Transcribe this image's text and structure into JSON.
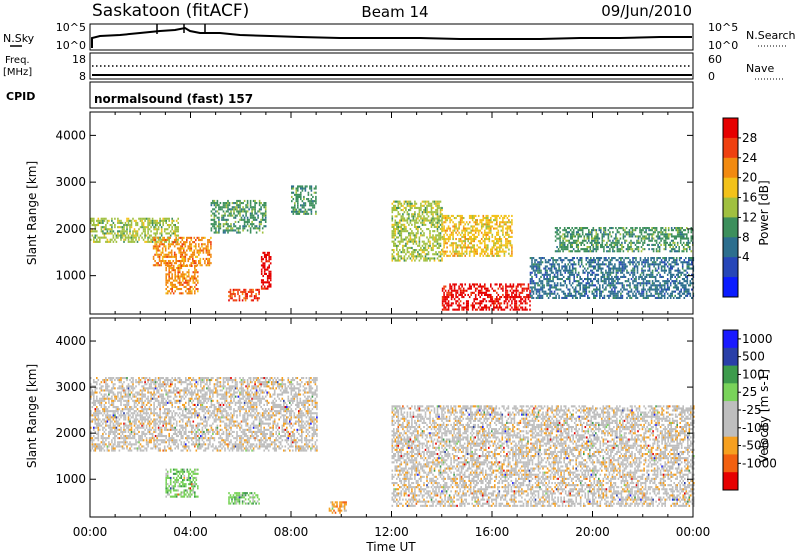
{
  "header": {
    "station": "Saskatoon (fitACF)",
    "beam": "Beam 14",
    "date": "09/Jun/2010"
  },
  "strip_sky": {
    "left_label": "N.Sky",
    "right_label": "N.Search",
    "left_ticks": [
      "10^5",
      "10^0"
    ],
    "right_ticks": [
      "10^5",
      "10^0"
    ]
  },
  "strip_freq": {
    "left_label_1": "Freq.",
    "left_label_2": "[MHz]",
    "right_label": "Nave",
    "left_ticks": [
      "18",
      "8"
    ],
    "right_ticks": [
      "60",
      "0"
    ]
  },
  "strip_cpid": {
    "label": "CPID",
    "program": "normalsound (fast) 157"
  },
  "colors": {
    "power_scale": [
      "#0b1cff",
      "#2646b8",
      "#2c6e8e",
      "#3c8f5c",
      "#a0c040",
      "#f3c21a",
      "#f28a10",
      "#ef4010",
      "#e60000"
    ],
    "velocity_scale": [
      "#e60000",
      "#f26010",
      "#f6a020",
      "#bebebe",
      "#bebebe",
      "#79d35a",
      "#3d9b4c",
      "#2a3fa8",
      "#1a1aff"
    ]
  },
  "chart_data": [
    {
      "type": "heatmap",
      "title": "",
      "quantity": "Power",
      "xlabel": "Time UT",
      "ylabel": "Slant Range [km]",
      "colorbar_label": "Power [dB]",
      "colorbar_ticks": [
        "28",
        "24",
        "20",
        "16",
        "12",
        "8",
        "4"
      ],
      "xlim": [
        "00:00",
        "00:00"
      ],
      "x_ticks": [
        "00:00",
        "04:00",
        "08:00",
        "12:00",
        "16:00",
        "20:00",
        "00:00"
      ],
      "ylim": [
        180,
        4500
      ],
      "y_ticks": [
        1000,
        2000,
        3000,
        4000
      ],
      "echo_regions": [
        {
          "t_start": 0.0,
          "t_end": 3.5,
          "range_km": [
            1700,
            2200
          ],
          "power_db": 16
        },
        {
          "t_start": 2.5,
          "t_end": 4.8,
          "range_km": [
            1200,
            1800
          ],
          "power_db": 22
        },
        {
          "t_start": 4.8,
          "t_end": 7.0,
          "range_km": [
            1900,
            2600
          ],
          "power_db": 12
        },
        {
          "t_start": 3.0,
          "t_end": 4.3,
          "range_km": [
            600,
            1200
          ],
          "power_db": 20
        },
        {
          "t_start": 5.5,
          "t_end": 6.7,
          "range_km": [
            450,
            700
          ],
          "power_db": 24
        },
        {
          "t_start": 6.8,
          "t_end": 7.2,
          "range_km": [
            700,
            1500
          ],
          "power_db": 26
        },
        {
          "t_start": 8.0,
          "t_end": 9.0,
          "range_km": [
            2300,
            2900
          ],
          "power_db": 10
        },
        {
          "t_start": 12.0,
          "t_end": 14.0,
          "range_km": [
            1300,
            2600
          ],
          "power_db": 14
        },
        {
          "t_start": 14.0,
          "t_end": 16.8,
          "range_km": [
            1400,
            2300
          ],
          "power_db": 18
        },
        {
          "t_start": 14.0,
          "t_end": 17.5,
          "range_km": [
            250,
            800
          ],
          "power_db": 28
        },
        {
          "t_start": 17.5,
          "t_end": 24.0,
          "range_km": [
            500,
            1400
          ],
          "power_db": 8
        },
        {
          "t_start": 18.5,
          "t_end": 24.0,
          "range_km": [
            1500,
            2000
          ],
          "power_db": 10
        }
      ]
    },
    {
      "type": "heatmap",
      "title": "",
      "quantity": "Velocity",
      "xlabel": "Time UT",
      "ylabel": "Slant Range [km]",
      "colorbar_label": "Velocity [m s-1]",
      "colorbar_ticks": [
        "1000",
        "500",
        "100",
        "25",
        "-25",
        "-100",
        "-500",
        "-1000"
      ],
      "xlim": [
        "00:00",
        "00:00"
      ],
      "x_ticks": [
        "00:00",
        "04:00",
        "08:00",
        "12:00",
        "16:00",
        "20:00",
        "00:00"
      ],
      "ylim": [
        180,
        4500
      ],
      "y_ticks": [
        1000,
        2000,
        3000,
        4000
      ],
      "echo_regions": [
        {
          "t_start": 0.0,
          "t_end": 9.0,
          "range_km": [
            1600,
            3200
          ],
          "velocity_ms": 0
        },
        {
          "t_start": 3.0,
          "t_end": 4.3,
          "range_km": [
            600,
            1200
          ],
          "velocity_ms": 100
        },
        {
          "t_start": 5.5,
          "t_end": 6.7,
          "range_km": [
            450,
            700
          ],
          "velocity_ms": 100
        },
        {
          "t_start": 12.0,
          "t_end": 24.0,
          "range_km": [
            400,
            2600
          ],
          "velocity_ms": 0
        },
        {
          "t_start": 9.5,
          "t_end": 10.2,
          "range_km": [
            250,
            500
          ],
          "velocity_ms": -100
        }
      ]
    }
  ]
}
